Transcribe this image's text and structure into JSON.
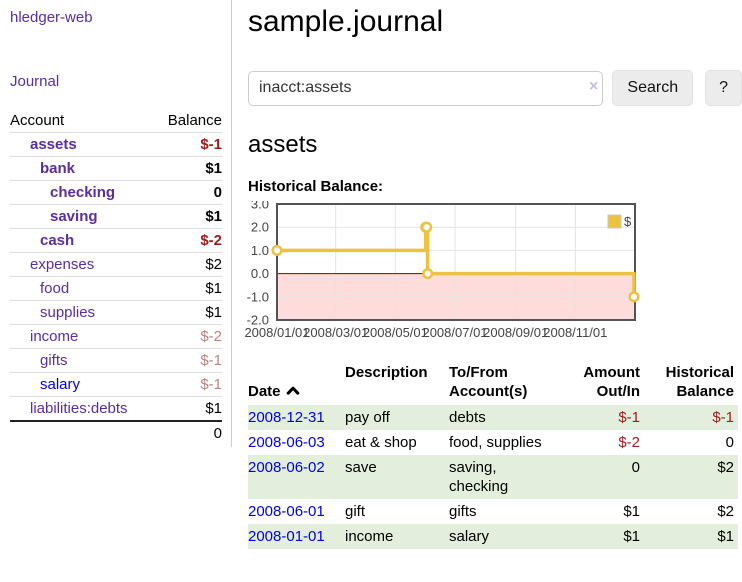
{
  "app": {
    "title": "hledger-web"
  },
  "nav": {
    "journal": "Journal"
  },
  "sidebar": {
    "header": {
      "account": "Account",
      "balance": "Balance"
    },
    "rows": [
      {
        "name": "assets",
        "balance": "$-1",
        "depth": 1,
        "bold": true,
        "neg": true
      },
      {
        "name": "bank",
        "balance": "$1",
        "depth": 2,
        "bold": true,
        "neg": false
      },
      {
        "name": "checking",
        "balance": "0",
        "depth": 3,
        "bold": true,
        "neg": false
      },
      {
        "name": "saving",
        "balance": "$1",
        "depth": 3,
        "bold": true,
        "neg": false
      },
      {
        "name": "cash",
        "balance": "$-2",
        "depth": 2,
        "bold": true,
        "neg": true
      },
      {
        "name": "expenses",
        "balance": "$2",
        "depth": 1,
        "bold": false,
        "neg": false
      },
      {
        "name": "food",
        "balance": "$1",
        "depth": 2,
        "bold": false,
        "neg": false
      },
      {
        "name": "supplies",
        "balance": "$1",
        "depth": 2,
        "bold": false,
        "neg": false
      },
      {
        "name": "income",
        "balance": "$-2",
        "depth": 1,
        "bold": false,
        "neg": true
      },
      {
        "name": "gifts",
        "balance": "$-1",
        "depth": 2,
        "bold": false,
        "neg": true
      },
      {
        "name": "salary",
        "balance": "$-1",
        "depth": 2,
        "bold": false,
        "neg": true,
        "blue": true
      },
      {
        "name": "liabilities:debts",
        "balance": "$1",
        "depth": 1,
        "bold": false,
        "neg": false
      }
    ],
    "total": "0"
  },
  "header": {
    "title": "sample.journal"
  },
  "search": {
    "value": "inacct:assets",
    "clear_icon": "×",
    "button": "Search",
    "help_button": "?"
  },
  "account_page": {
    "title": "assets",
    "chart_title": "Historical Balance:"
  },
  "chart_data": {
    "type": "line",
    "step": true,
    "title": "Historical Balance:",
    "legend": "$",
    "legend_position": "top-right",
    "x_range": [
      "2008-01-01",
      "2009-01-01"
    ],
    "ylim": [
      -2,
      3
    ],
    "grid": true,
    "series": [
      {
        "name": "$",
        "color": "#edc240",
        "points": [
          [
            "2008-01-01",
            1
          ],
          [
            "2008-06-01",
            2
          ],
          [
            "2008-06-02",
            2
          ],
          [
            "2008-06-03",
            0
          ],
          [
            "2008-12-31",
            -1
          ]
        ]
      }
    ],
    "x_ticks": [
      "2008/01/01",
      "2008/03/01",
      "2008/05/01",
      "2008/07/01",
      "2008/09/01",
      "2008/11/01"
    ],
    "y_ticks": [
      "3.0",
      "2.0",
      "1.0",
      "0.0",
      "-1.0",
      "-2.0"
    ],
    "negative_region_color": "#ffdcdc",
    "zero_line_color": "#8b0000",
    "border_color": "#545454"
  },
  "transactions": {
    "columns": [
      "Date",
      "Description",
      "To/From\nAccount(s)",
      "Amount\nOut/In",
      "Historical\nBalance"
    ],
    "rows": [
      {
        "date": "2008-12-31",
        "description": "pay off",
        "accounts": "debts",
        "amount": "$-1",
        "balance": "$-1"
      },
      {
        "date": "2008-06-03",
        "description": "eat & shop",
        "accounts": "food, supplies",
        "amount": "$-2",
        "balance": "0"
      },
      {
        "date": "2008-06-02",
        "description": "save",
        "accounts": "saving, checking",
        "amount": "0",
        "balance": "$2"
      },
      {
        "date": "2008-06-01",
        "description": "gift",
        "accounts": "gifts",
        "amount": "$1",
        "balance": "$2"
      },
      {
        "date": "2008-01-01",
        "description": "income",
        "accounts": "salary",
        "amount": "$1",
        "balance": "$1"
      }
    ]
  }
}
